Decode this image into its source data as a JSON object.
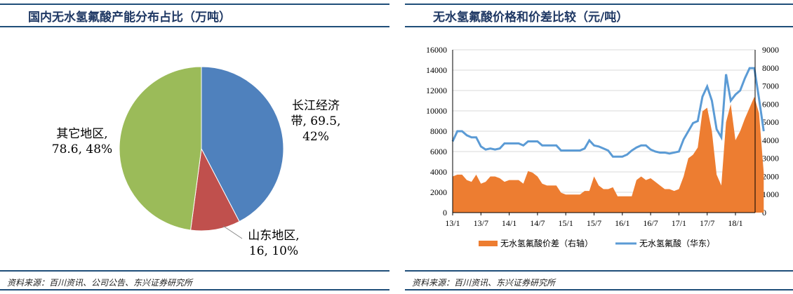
{
  "chart_data": [
    {
      "type": "pie",
      "title": "国内无水氢氟酸产能分布占比（万吨）",
      "slices": [
        {
          "name": "长江经济带",
          "value": 69.5,
          "pct": "42%",
          "label_line1": "长江经济",
          "label_line2": "带, 69.5,",
          "label_line3": "42%",
          "color": "#4f81bd"
        },
        {
          "name": "山东地区",
          "value": 16,
          "pct": "10%",
          "label_line1": "山东地区,",
          "label_line2": "16, 10%",
          "color": "#c0504d"
        },
        {
          "name": "其它地区",
          "value": 78.6,
          "pct": "48%",
          "label_line1": "其它地区,",
          "label_line2": "78.6, 48%",
          "color": "#9bbb59"
        }
      ],
      "source": "资料来源：百川资讯、公司公告、东兴证券研究所"
    },
    {
      "type": "line",
      "title": "无水氢氟酸价格和价差比较（元/吨）",
      "x_ticks": [
        "13/1",
        "13/7",
        "14/1",
        "14/7",
        "15/1",
        "15/7",
        "16/1",
        "16/7",
        "17/1",
        "17/7",
        "18/1"
      ],
      "x_start": "13/1",
      "x_end": "18/5",
      "ylim_left": [
        0,
        16000
      ],
      "yticks_left": [
        0,
        2000,
        4000,
        6000,
        8000,
        10000,
        12000,
        14000,
        16000
      ],
      "ylim_right": [
        0,
        9000
      ],
      "yticks_right": [
        0,
        1000,
        2000,
        3000,
        4000,
        5000,
        6000,
        7000,
        8000,
        9000
      ],
      "grid": true,
      "legend": "bottom",
      "series": [
        {
          "name": "无水氢氟酸价差（右轴）",
          "type": "area",
          "axis": "right",
          "color": "#ed7d31",
          "values": [
            2000,
            2100,
            2100,
            1800,
            1700,
            2100,
            1600,
            1700,
            2000,
            2000,
            1900,
            1700,
            1800,
            1800,
            1800,
            1600,
            2300,
            2200,
            2000,
            1600,
            1500,
            1500,
            1500,
            1100,
            1000,
            1000,
            1000,
            1000,
            1200,
            1200,
            2000,
            1500,
            1300,
            1300,
            1400,
            900,
            900,
            900,
            900,
            1800,
            2000,
            1800,
            1900,
            1700,
            1500,
            1300,
            1300,
            1200,
            1300,
            2000,
            3000,
            3200,
            3600,
            5600,
            5800,
            4500,
            2100,
            1500,
            5000,
            6000,
            4000,
            4500,
            5200,
            5800,
            6400,
            5500,
            2200
          ]
        },
        {
          "name": "无水氢氟酸（华东）",
          "type": "line",
          "axis": "left",
          "color": "#5b9bd5",
          "values": [
            7000,
            8000,
            8000,
            7600,
            7400,
            7400,
            6500,
            6200,
            6300,
            6200,
            6300,
            6800,
            6800,
            6800,
            6800,
            6600,
            7000,
            7000,
            7000,
            6600,
            6600,
            6600,
            6600,
            6100,
            6100,
            6100,
            6100,
            6100,
            6300,
            7100,
            6600,
            6500,
            6300,
            6100,
            5500,
            5500,
            5500,
            5700,
            6100,
            6400,
            6600,
            6600,
            6200,
            6000,
            5900,
            5900,
            5800,
            5900,
            6000,
            7200,
            8000,
            8800,
            9000,
            11400,
            12400,
            11000,
            8200,
            7400,
            13600,
            11000,
            11600,
            12000,
            13200,
            14200,
            14200,
            11200,
            8000
          ]
        }
      ],
      "source": "资料来源：百川资讯、东兴证券研究所"
    }
  ]
}
